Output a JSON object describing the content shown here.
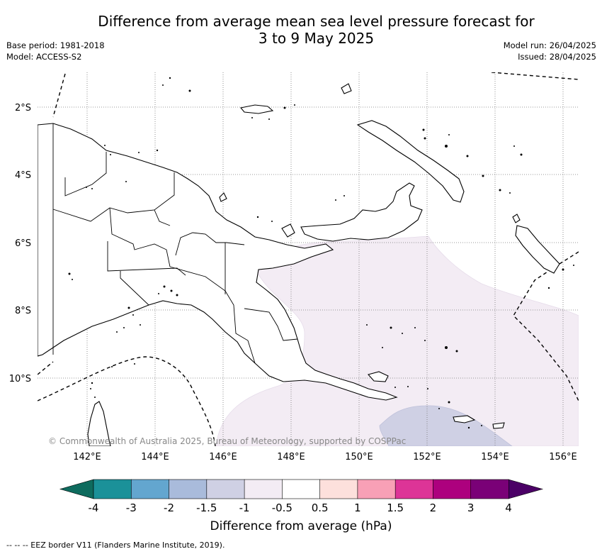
{
  "header": {
    "title_line1": "Difference from average mean sea level pressure forecast for",
    "title_line2": "3 to 9 May 2025",
    "base_period": "Base period: 1981-2018",
    "model": "Model: ACCESS-S2",
    "model_run": "Model run: 26/04/2025",
    "issued": "Issued: 28/04/2025"
  },
  "map": {
    "region": "Papua New Guinea",
    "lat_labels": [
      "2°S",
      "4°S",
      "6°S",
      "8°S",
      "10°S"
    ],
    "lon_labels": [
      "142°E",
      "144°E",
      "146°E",
      "148°E",
      "150°E",
      "152°E",
      "154°E",
      "156°E"
    ],
    "copyright": "© Commonwealth of Australia 2025, Bureau of Meteorology, supported by COSPPac",
    "shaded_anomalies": [
      {
        "range": "-1 to -0.5",
        "color": "#f3ecf4",
        "where": "south-east, Coral Sea to Solomon Sea"
      },
      {
        "range": "-1.5 to -1",
        "color": "#cfd0e4",
        "where": "far south-east"
      }
    ]
  },
  "colorbar": {
    "title": "Difference from average (hPa)",
    "ticks": [
      "-4",
      "-3",
      "-2",
      "-1.5",
      "-1",
      "-0.5",
      "0.5",
      "1",
      "1.5",
      "2",
      "3",
      "4"
    ],
    "under_color": "#0e6b5e",
    "over_color": "#4b0066",
    "colors": [
      "#1b9199",
      "#63a6cf",
      "#a9bbdb",
      "#cfd0e4",
      "#f3ecf4",
      "#ffffff",
      "#fde0dc",
      "#f8a0b6",
      "#dd3497",
      "#ad017e",
      "#7a0177"
    ]
  },
  "footer": {
    "eez_legend": "--  --  -- EEZ border V11 (Flanders Marine Institute, 2019)."
  }
}
